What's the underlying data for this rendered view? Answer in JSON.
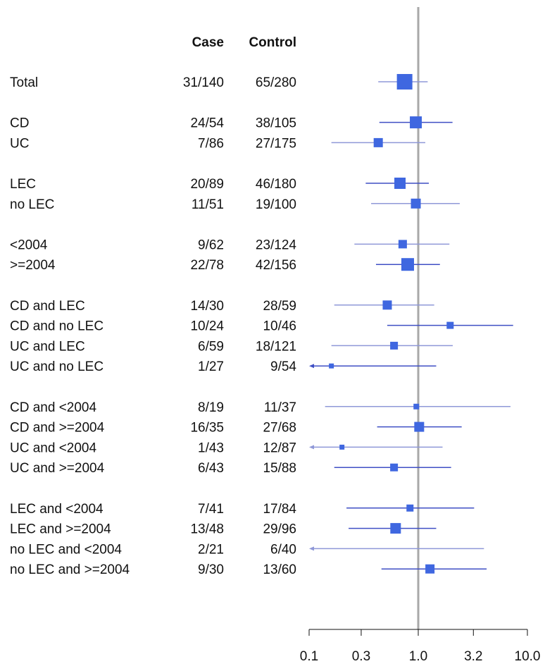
{
  "chart_data": {
    "type": "forest",
    "x_scale": "log",
    "xlim": [
      0.1,
      10.0
    ],
    "xticks": [
      0.1,
      0.3,
      1.0,
      3.2,
      10.0
    ],
    "xtick_labels": [
      "0.1",
      "0.3",
      "1.0",
      "3.2",
      "10.0"
    ],
    "reference_line": 1.0,
    "columns": [
      "Case",
      "Control"
    ],
    "colors": {
      "high_weight_ci": "#3f4fc4",
      "low_weight_ci": "#8f98d8",
      "marker": "#3f67e0",
      "reference": "#a8a8a8"
    },
    "rows": [
      {
        "label": "Total",
        "case": "31/140",
        "control": "65/280",
        "or": 0.75,
        "lo": 0.43,
        "hi": 1.22,
        "size": 22,
        "group": 0,
        "dark": false
      },
      {
        "label": "CD",
        "case": "24/54",
        "control": "38/105",
        "or": 0.95,
        "lo": 0.44,
        "hi": 2.06,
        "size": 17,
        "group": 1,
        "dark": true
      },
      {
        "label": "UC",
        "case": "7/86",
        "control": "27/175",
        "or": 0.43,
        "lo": 0.16,
        "hi": 1.16,
        "size": 13,
        "group": 1,
        "dark": false
      },
      {
        "label": "LEC",
        "case": "20/89",
        "control": "46/180",
        "or": 0.68,
        "lo": 0.33,
        "hi": 1.25,
        "size": 16,
        "group": 2,
        "dark": true
      },
      {
        "label": "no LEC",
        "case": "11/51",
        "control": "19/100",
        "or": 0.95,
        "lo": 0.37,
        "hi": 2.4,
        "size": 14,
        "group": 2,
        "dark": false
      },
      {
        "label": "<2004",
        "case": "9/62",
        "control": "23/124",
        "or": 0.72,
        "lo": 0.26,
        "hi": 1.93,
        "size": 12,
        "group": 3,
        "dark": false
      },
      {
        "label": ">=2004",
        "case": "22/78",
        "control": "42/156",
        "or": 0.8,
        "lo": 0.41,
        "hi": 1.58,
        "size": 18,
        "group": 3,
        "dark": true
      },
      {
        "label": "CD and LEC",
        "case": "14/30",
        "control": "28/59",
        "or": 0.52,
        "lo": 0.17,
        "hi": 1.4,
        "size": 13,
        "group": 4,
        "dark": false
      },
      {
        "label": "CD and no LEC",
        "case": "10/24",
        "control": "10/46",
        "or": 1.96,
        "lo": 0.52,
        "hi": 7.4,
        "size": 10,
        "group": 4,
        "dark": true
      },
      {
        "label": "UC and LEC",
        "case": "6/59",
        "control": "18/121",
        "or": 0.6,
        "lo": 0.16,
        "hi": 2.07,
        "size": 11,
        "group": 4,
        "dark": false
      },
      {
        "label": "UC and no LEC",
        "case": "1/27",
        "control": "9/54",
        "or": 0.16,
        "lo": 0.1,
        "hi": 1.46,
        "size": 7,
        "group": 4,
        "dark": true,
        "arrow_left": true
      },
      {
        "label": "CD and <2004",
        "case": "8/19",
        "control": "11/37",
        "or": 0.96,
        "lo": 0.14,
        "hi": 7.0,
        "size": 8,
        "group": 5,
        "dark": false
      },
      {
        "label": "CD and >=2004",
        "case": "16/35",
        "control": "27/68",
        "or": 1.02,
        "lo": 0.42,
        "hi": 2.5,
        "size": 14,
        "group": 5,
        "dark": true
      },
      {
        "label": "UC and <2004",
        "case": "1/43",
        "control": "12/87",
        "or": 0.2,
        "lo": 0.1,
        "hi": 1.67,
        "size": 7,
        "group": 5,
        "dark": false,
        "arrow_left": true
      },
      {
        "label": "UC and >=2004",
        "case": "6/43",
        "control": "15/88",
        "or": 0.6,
        "lo": 0.17,
        "hi": 2.0,
        "size": 11,
        "group": 5,
        "dark": true
      },
      {
        "label": "LEC and <2004",
        "case": "7/41",
        "control": "17/84",
        "or": 0.84,
        "lo": 0.22,
        "hi": 3.25,
        "size": 10,
        "group": 6,
        "dark": true
      },
      {
        "label": "LEC and >=2004",
        "case": "13/48",
        "control": "29/96",
        "or": 0.62,
        "lo": 0.23,
        "hi": 1.46,
        "size": 15,
        "group": 6,
        "dark": true
      },
      {
        "label": "no LEC and <2004",
        "case": "2/21",
        "control": "6/40",
        "or": null,
        "lo": 0.1,
        "hi": 4.0,
        "size": 0,
        "group": 6,
        "dark": false,
        "arrow_left": true
      },
      {
        "label": "no LEC and >=2004",
        "case": "9/30",
        "control": "13/60",
        "or": 1.28,
        "lo": 0.46,
        "hi": 4.23,
        "size": 13,
        "group": 6,
        "dark": true
      }
    ]
  }
}
